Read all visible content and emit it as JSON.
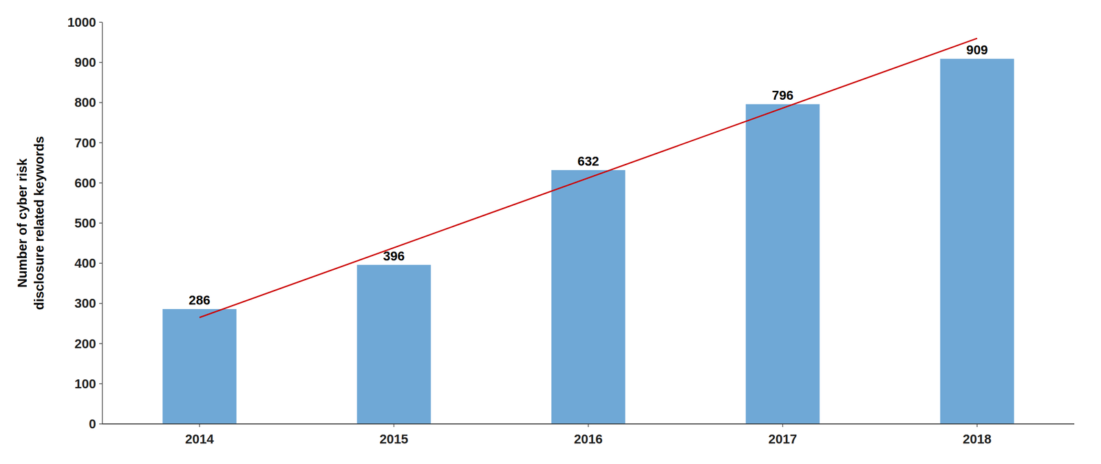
{
  "chart_data": {
    "type": "bar",
    "categories": [
      "2014",
      "2015",
      "2016",
      "2017",
      "2018"
    ],
    "values": [
      286,
      396,
      632,
      796,
      909
    ],
    "color": "#6fa8d6",
    "data_labels": true,
    "trend_line": {
      "categories": [
        "2014",
        "2018"
      ],
      "values": [
        265,
        960
      ],
      "color": "#cc0000"
    },
    "ylabel": [
      "Number of cyber risk",
      "disclosure related keywords"
    ],
    "ylim": [
      0,
      1000
    ],
    "yticks": [
      0,
      100,
      200,
      300,
      400,
      500,
      600,
      700,
      800,
      900,
      1000
    ],
    "grid": false
  }
}
